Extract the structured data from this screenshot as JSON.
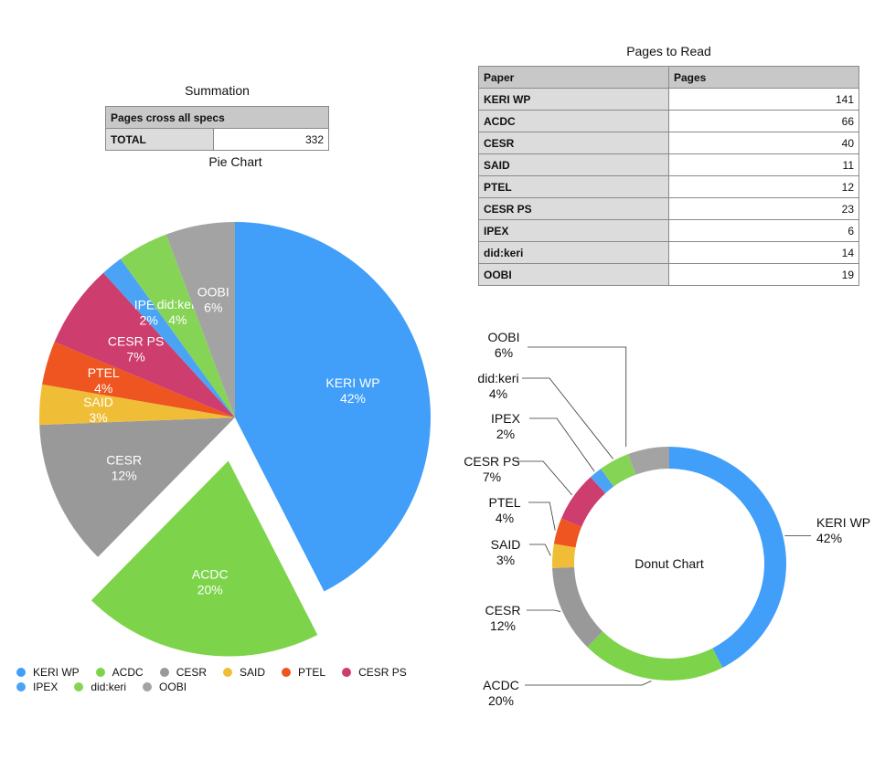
{
  "summation": {
    "title": "Summation",
    "header": "Pages cross all specs",
    "total_label": "TOTAL",
    "total_value": "332"
  },
  "pages_table": {
    "title": "Pages to Read",
    "headers": [
      "Paper",
      "Pages"
    ],
    "rows": [
      {
        "paper": "KERI WP",
        "pages": "141"
      },
      {
        "paper": "ACDC",
        "pages": "66"
      },
      {
        "paper": "CESR",
        "pages": "40"
      },
      {
        "paper": "SAID",
        "pages": "11"
      },
      {
        "paper": "PTEL",
        "pages": "12"
      },
      {
        "paper": "CESR PS",
        "pages": "23"
      },
      {
        "paper": "IPEX",
        "pages": "6"
      },
      {
        "paper": "did:keri",
        "pages": "14"
      },
      {
        "paper": "OOBI",
        "pages": "19"
      }
    ]
  },
  "chart_data": [
    {
      "type": "pie",
      "title": "Pie Chart",
      "categories": [
        "KERI WP",
        "ACDC",
        "CESR",
        "SAID",
        "PTEL",
        "CESR PS",
        "IPEX",
        "did:keri",
        "OOBI"
      ],
      "values": [
        141,
        66,
        40,
        11,
        12,
        23,
        6,
        14,
        19
      ],
      "labels": [
        "42%",
        "20%",
        "12%",
        "3%",
        "4%",
        "7%",
        "2%",
        "4%",
        "6%"
      ],
      "exploded": [
        "ACDC"
      ],
      "legend": "bottom"
    },
    {
      "type": "pie",
      "subtype": "donut",
      "title": "Donut Chart",
      "categories": [
        "KERI WP",
        "ACDC",
        "CESR",
        "SAID",
        "PTEL",
        "CESR PS",
        "IPEX",
        "did:keri",
        "OOBI"
      ],
      "values": [
        141,
        66,
        40,
        11,
        12,
        23,
        6,
        14,
        19
      ],
      "labels": [
        "42%",
        "20%",
        "12%",
        "3%",
        "4%",
        "7%",
        "2%",
        "4%",
        "6%"
      ]
    }
  ],
  "colors": {
    "KERI WP": "#419ef9",
    "ACDC": "#7dd44a",
    "CESR": "#999999",
    "SAID": "#f0be36",
    "PTEL": "#ee5520",
    "CESR PS": "#cd3d6e",
    "IPEX": "#4aa3f5",
    "did:keri": "#86d456",
    "OOBI": "#a3a3a3"
  }
}
